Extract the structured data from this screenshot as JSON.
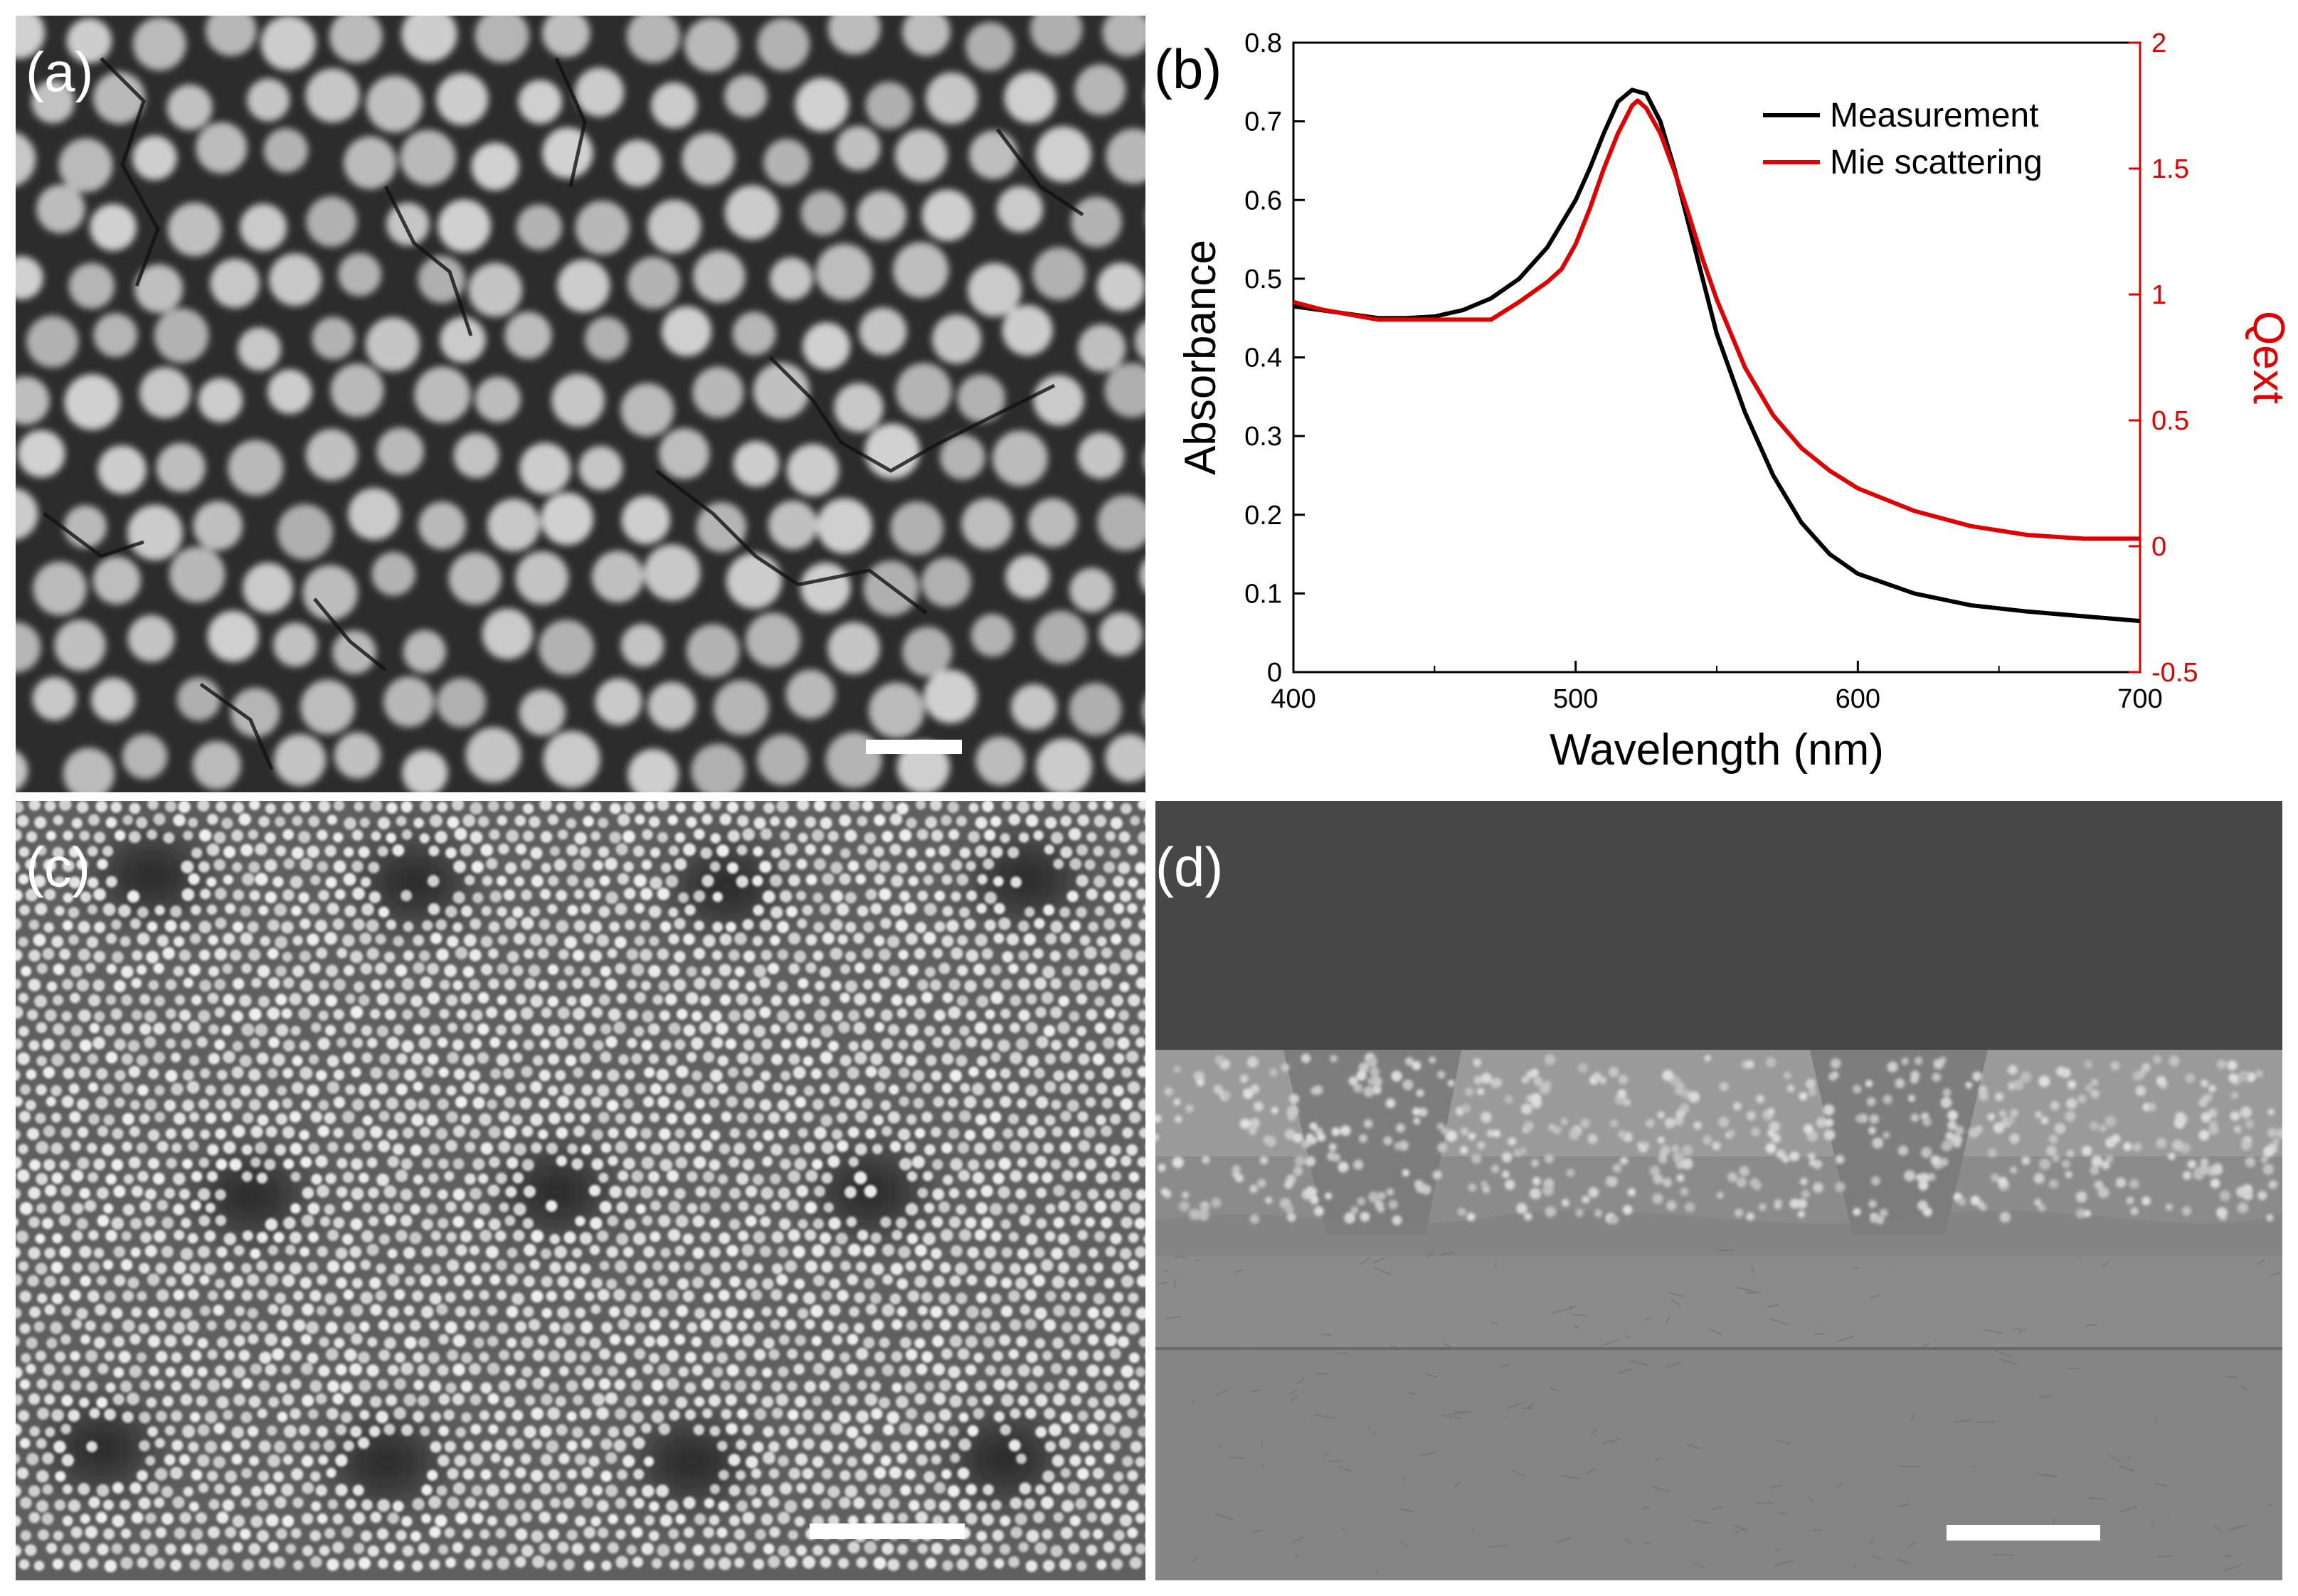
{
  "panels": {
    "a": {
      "label": "(a)"
    },
    "b": {
      "label": "(b)"
    },
    "c": {
      "label": "(c)"
    },
    "d": {
      "label": "(d)"
    }
  },
  "colors": {
    "measurement": "#000000",
    "mie": "#e00000",
    "sem_background": "#2e2e2e",
    "particle": "#d0d0d0"
  },
  "chart_data": {
    "type": "line",
    "xlabel": "Wavelength (nm)",
    "ylabel": "Absorbance",
    "y2label": "Qext",
    "xlim": [
      400,
      700
    ],
    "ylim": [
      0,
      0.8
    ],
    "y2lim": [
      -0.5,
      2
    ],
    "xticks": [
      "400",
      "500",
      "600",
      "700"
    ],
    "yticks": [
      "0",
      "0.1",
      "0.2",
      "0.3",
      "0.4",
      "0.5",
      "0.6",
      "0.7",
      "0.8"
    ],
    "y2ticks": [
      "-0.5",
      "0",
      "0.5",
      "1",
      "1.5",
      "2"
    ],
    "legend_position": "top-right",
    "grid": false,
    "series": [
      {
        "name": "Measurement",
        "axis": "left",
        "x": [
          400,
          410,
          420,
          430,
          440,
          450,
          460,
          470,
          480,
          490,
          500,
          505,
          510,
          515,
          520,
          525,
          530,
          535,
          540,
          545,
          550,
          560,
          570,
          580,
          590,
          600,
          620,
          640,
          660,
          680,
          700
        ],
        "y": [
          0.465,
          0.46,
          0.455,
          0.45,
          0.45,
          0.452,
          0.46,
          0.475,
          0.5,
          0.54,
          0.6,
          0.64,
          0.685,
          0.725,
          0.74,
          0.735,
          0.7,
          0.64,
          0.57,
          0.5,
          0.43,
          0.33,
          0.25,
          0.19,
          0.15,
          0.125,
          0.1,
          0.085,
          0.077,
          0.071,
          0.065
        ]
      },
      {
        "name": "Mie scattering",
        "axis": "right",
        "x": [
          400,
          410,
          420,
          430,
          440,
          450,
          460,
          470,
          480,
          490,
          495,
          500,
          505,
          510,
          515,
          520,
          522,
          525,
          530,
          535,
          540,
          545,
          550,
          560,
          570,
          580,
          590,
          600,
          620,
          640,
          660,
          680,
          700
        ],
        "y": [
          0.97,
          0.94,
          0.92,
          0.9,
          0.9,
          0.9,
          0.9,
          0.9,
          0.97,
          1.05,
          1.1,
          1.2,
          1.34,
          1.5,
          1.64,
          1.75,
          1.77,
          1.74,
          1.64,
          1.49,
          1.32,
          1.14,
          0.98,
          0.71,
          0.52,
          0.39,
          0.3,
          0.23,
          0.14,
          0.08,
          0.045,
          0.03,
          0.03
        ]
      }
    ]
  }
}
